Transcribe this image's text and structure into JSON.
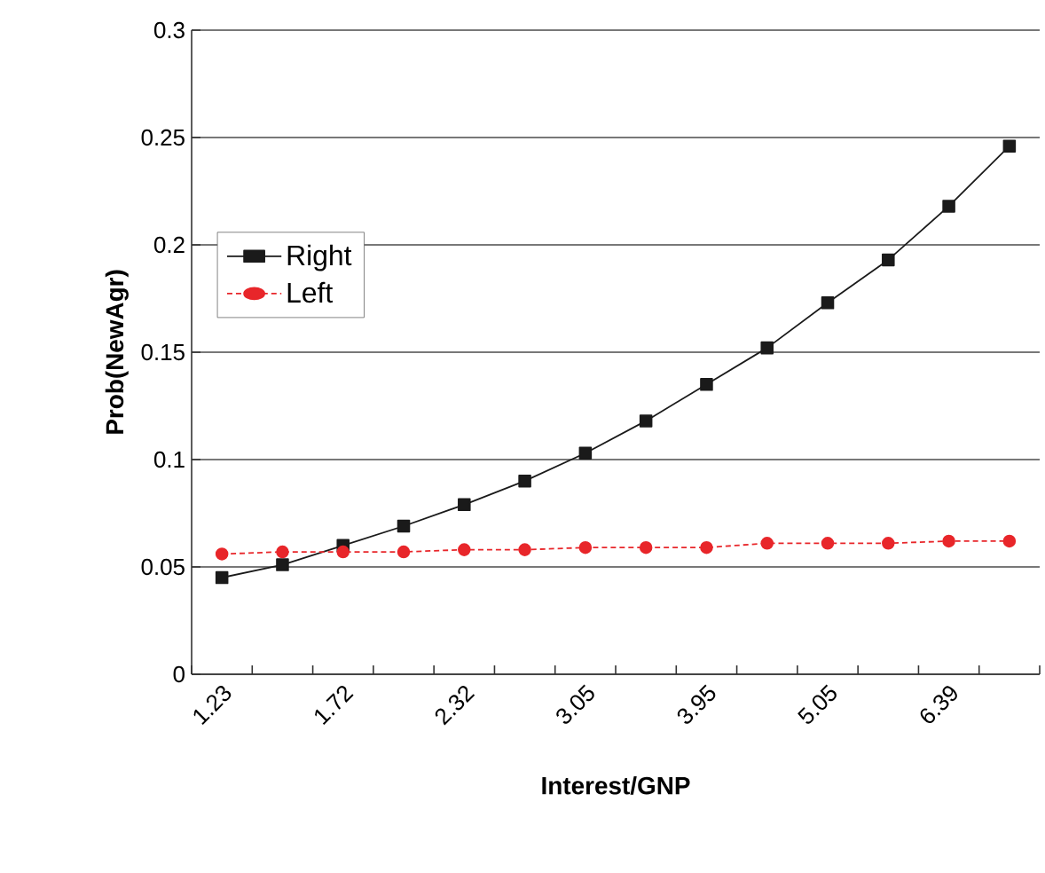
{
  "chart_data": {
    "type": "line",
    "xlabel": "Interest/GNP",
    "ylabel": "Prob(NewAgr)",
    "categories": [
      "1.23",
      null,
      "1.72",
      null,
      "2.32",
      null,
      "3.05",
      null,
      "3.95",
      null,
      "5.05",
      null,
      "6.39",
      null
    ],
    "series": [
      {
        "name": "Right",
        "color": "#1a1a1a",
        "marker": "square",
        "line_style": "solid",
        "values": [
          0.045,
          0.051,
          0.06,
          0.069,
          0.079,
          0.09,
          0.103,
          0.118,
          0.135,
          0.152,
          0.173,
          0.193,
          0.218,
          0.246
        ]
      },
      {
        "name": "Left",
        "color": "#e8262a",
        "marker": "circle",
        "line_style": "dashed",
        "values": [
          0.056,
          0.057,
          0.057,
          0.057,
          0.058,
          0.058,
          0.059,
          0.059,
          0.059,
          0.061,
          0.061,
          0.061,
          0.062,
          0.062
        ]
      }
    ],
    "ylim": [
      0,
      0.3
    ],
    "yticks": [
      0,
      0.05,
      0.1,
      0.15,
      0.2,
      0.25,
      0.3
    ],
    "grid": "y",
    "legend": "left"
  }
}
